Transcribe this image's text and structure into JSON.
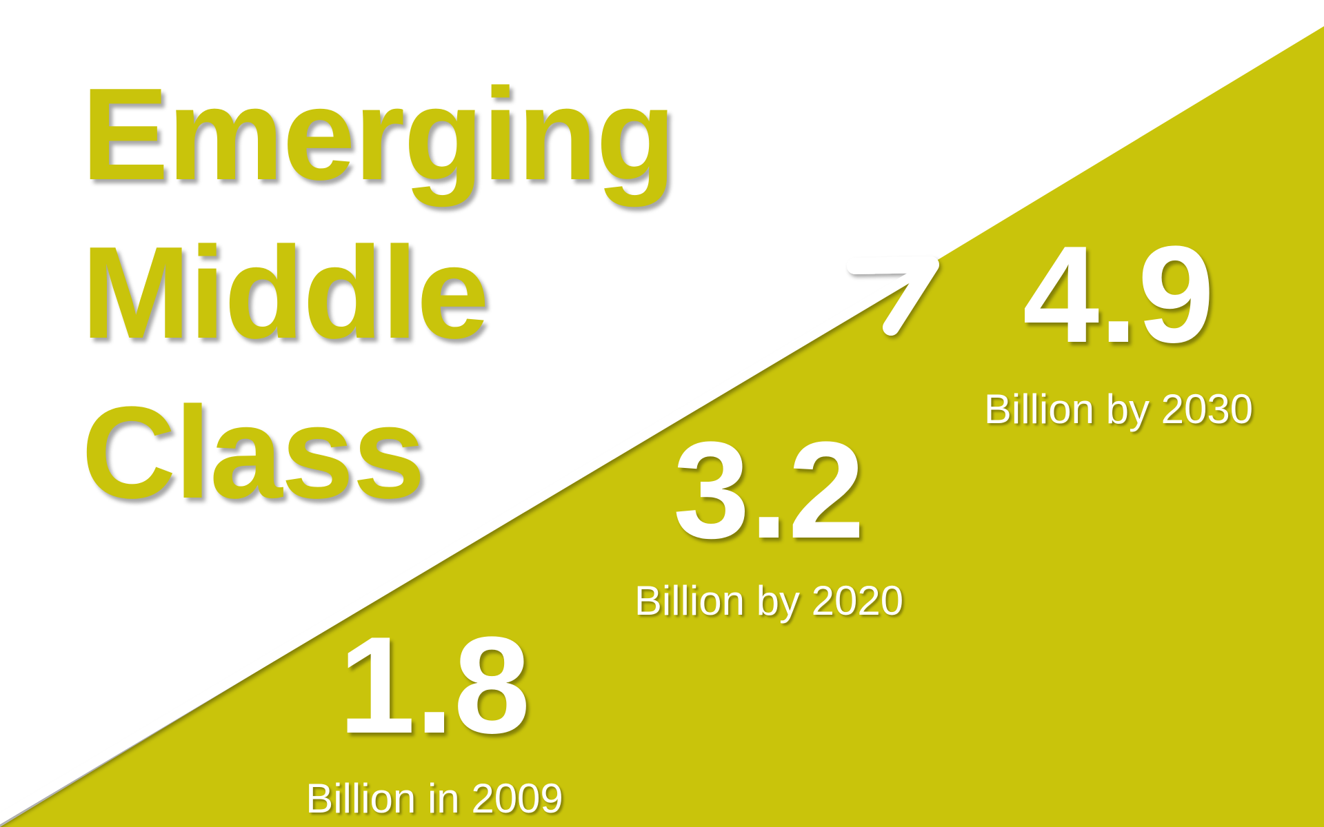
{
  "title": {
    "line1": "Emerging",
    "line2": "Middle",
    "line3": "Class"
  },
  "stats": [
    {
      "value": "1.8",
      "caption": "Billion in 2009"
    },
    {
      "value": "3.2",
      "caption": "Billion by 2020"
    },
    {
      "value": "4.9",
      "caption": "Billion by 2030"
    }
  ],
  "colors": {
    "accent": "#c9c40b",
    "background": "#ffffff",
    "text_on_accent": "#ffffff"
  },
  "icons": {
    "arrow": "trend-up-arrow-icon"
  }
}
